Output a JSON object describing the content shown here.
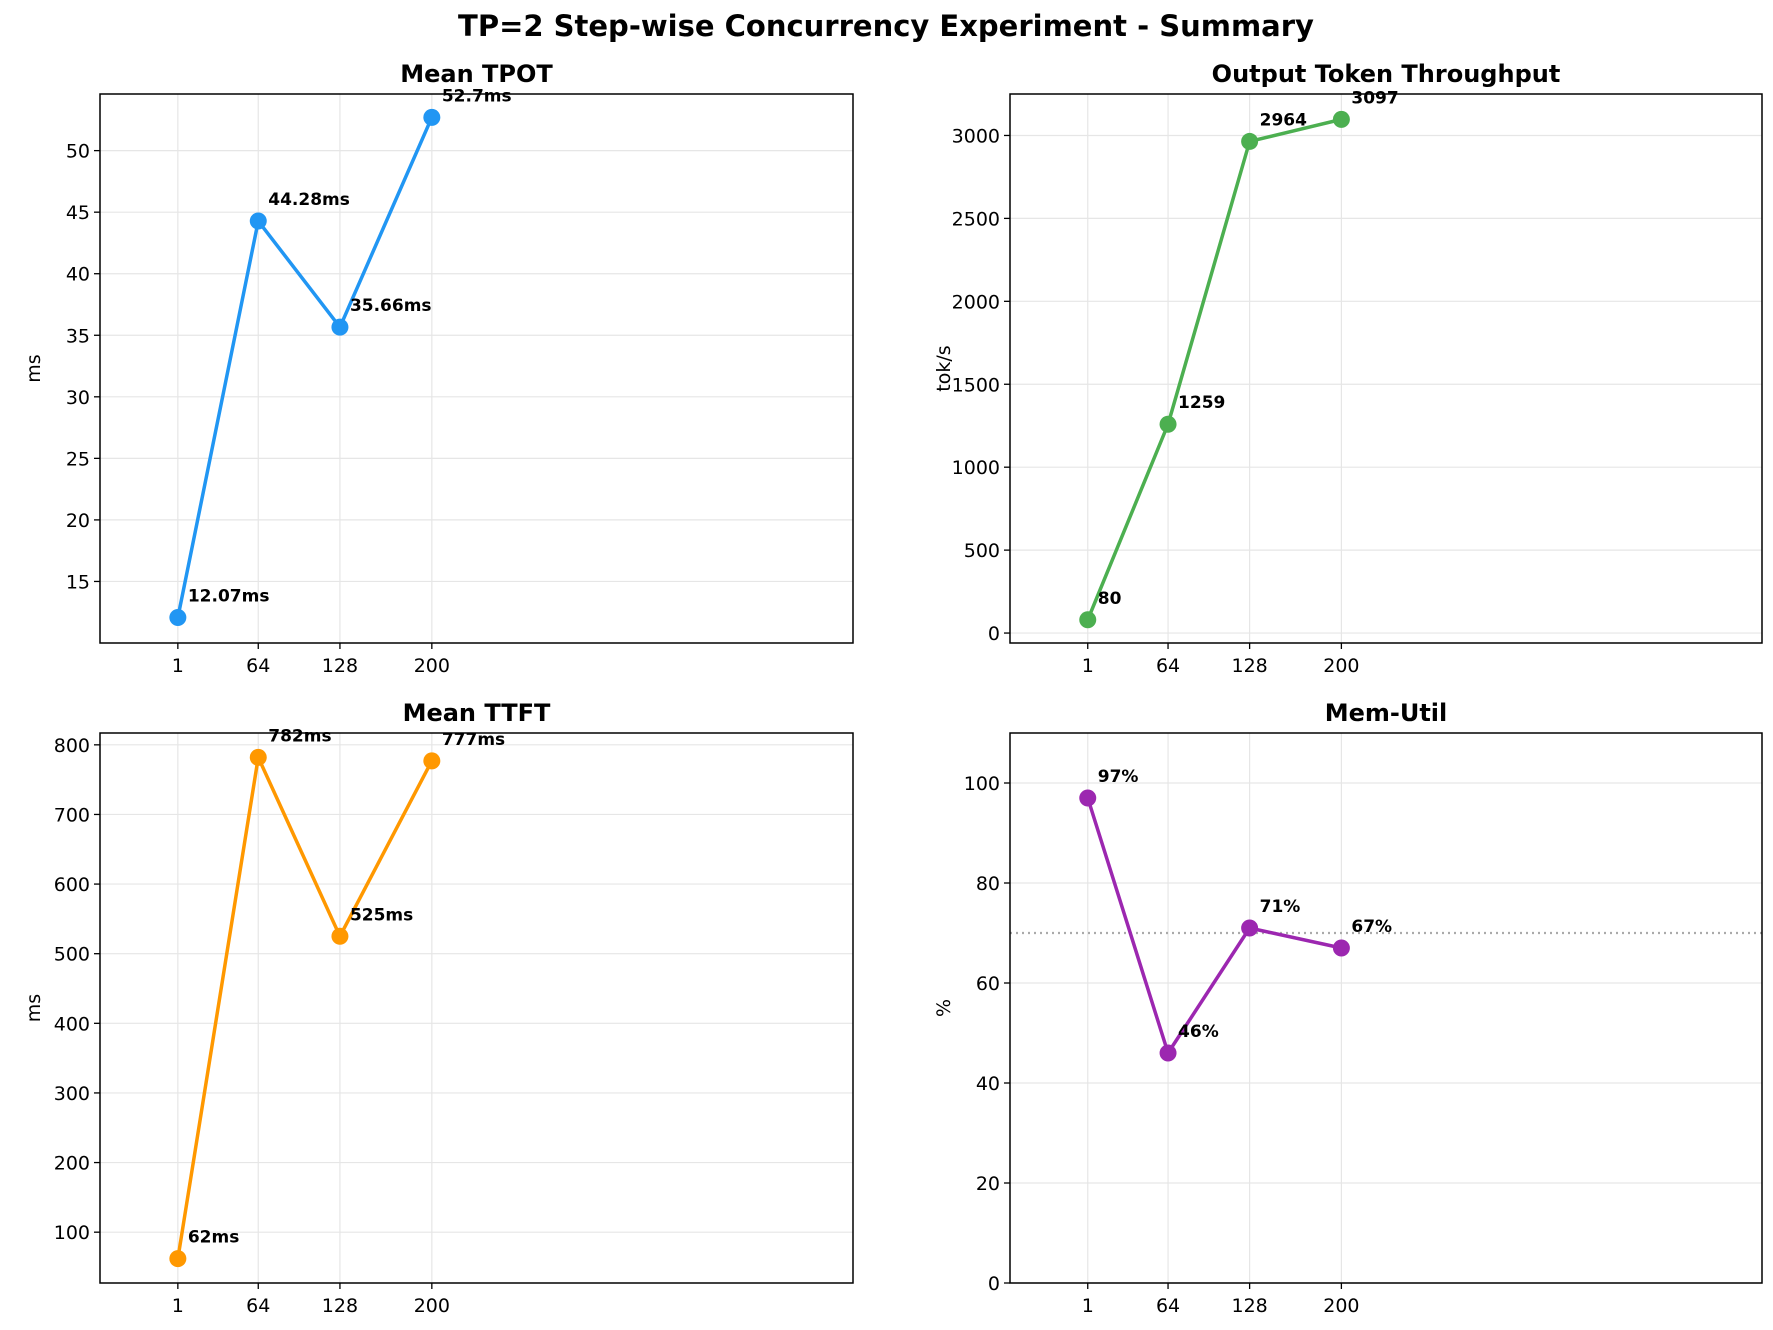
{
  "figure": {
    "title": "TP=2 Step-wise Concurrency Experiment - Summary"
  },
  "chart_data": [
    {
      "type": "line",
      "title": "Mean TPOT",
      "xlabel": "",
      "ylabel": "ms",
      "x": [
        1,
        64,
        128,
        200
      ],
      "x_ticks": [
        "1",
        "64",
        "128",
        "200"
      ],
      "xlim": [
        -60,
        530
      ],
      "ylim": [
        10.0,
        54.6
      ],
      "y_ticks": [
        15,
        20,
        25,
        30,
        35,
        40,
        45,
        50
      ],
      "grid": true,
      "color": "#2196f3",
      "series": [
        {
          "values": [
            12.07,
            44.28,
            35.66,
            52.7
          ],
          "labels": [
            "12.07ms",
            "44.28ms",
            "35.66ms",
            "52.7ms"
          ]
        }
      ]
    },
    {
      "type": "line",
      "title": "Output Token Throughput",
      "xlabel": "",
      "ylabel": "tok/s",
      "x": [
        1,
        64,
        128,
        200
      ],
      "x_ticks": [
        "1",
        "64",
        "128",
        "200"
      ],
      "xlim": [
        -60,
        530
      ],
      "ylim": [
        -60,
        3250
      ],
      "y_ticks": [
        0,
        500,
        1000,
        1500,
        2000,
        2500,
        3000
      ],
      "grid": true,
      "color": "#4caf50",
      "series": [
        {
          "values": [
            80,
            1259,
            2964,
            3097
          ],
          "labels": [
            "80",
            "1259",
            "2964",
            "3097"
          ]
        }
      ]
    },
    {
      "type": "line",
      "title": "Mean TTFT",
      "xlabel": "",
      "ylabel": "ms",
      "x": [
        1,
        64,
        128,
        200
      ],
      "x_ticks": [
        "1",
        "64",
        "128",
        "200"
      ],
      "xlim": [
        -60,
        530
      ],
      "ylim": [
        27,
        817
      ],
      "y_ticks": [
        100,
        200,
        300,
        400,
        500,
        600,
        700,
        800
      ],
      "grid": true,
      "color": "#ff9800",
      "series": [
        {
          "values": [
            62,
            782,
            525,
            777
          ],
          "labels": [
            "62ms",
            "782ms",
            "525ms",
            "777ms"
          ]
        }
      ]
    },
    {
      "type": "line",
      "title": "Mem-Util",
      "xlabel": "",
      "ylabel": "%",
      "x": [
        1,
        64,
        128,
        200
      ],
      "x_ticks": [
        "1",
        "64",
        "128",
        "200"
      ],
      "xlim": [
        -60,
        530
      ],
      "ylim": [
        0,
        110
      ],
      "y_ticks": [
        0,
        20,
        40,
        60,
        80,
        100
      ],
      "grid": true,
      "color": "#9c27b0",
      "reference_line": {
        "y": 70,
        "color": "#aaaaaa",
        "style": "dotted"
      },
      "series": [
        {
          "values": [
            97,
            46,
            71,
            67
          ],
          "labels": [
            "97%",
            "46%",
            "71%",
            "67%"
          ]
        }
      ]
    }
  ]
}
